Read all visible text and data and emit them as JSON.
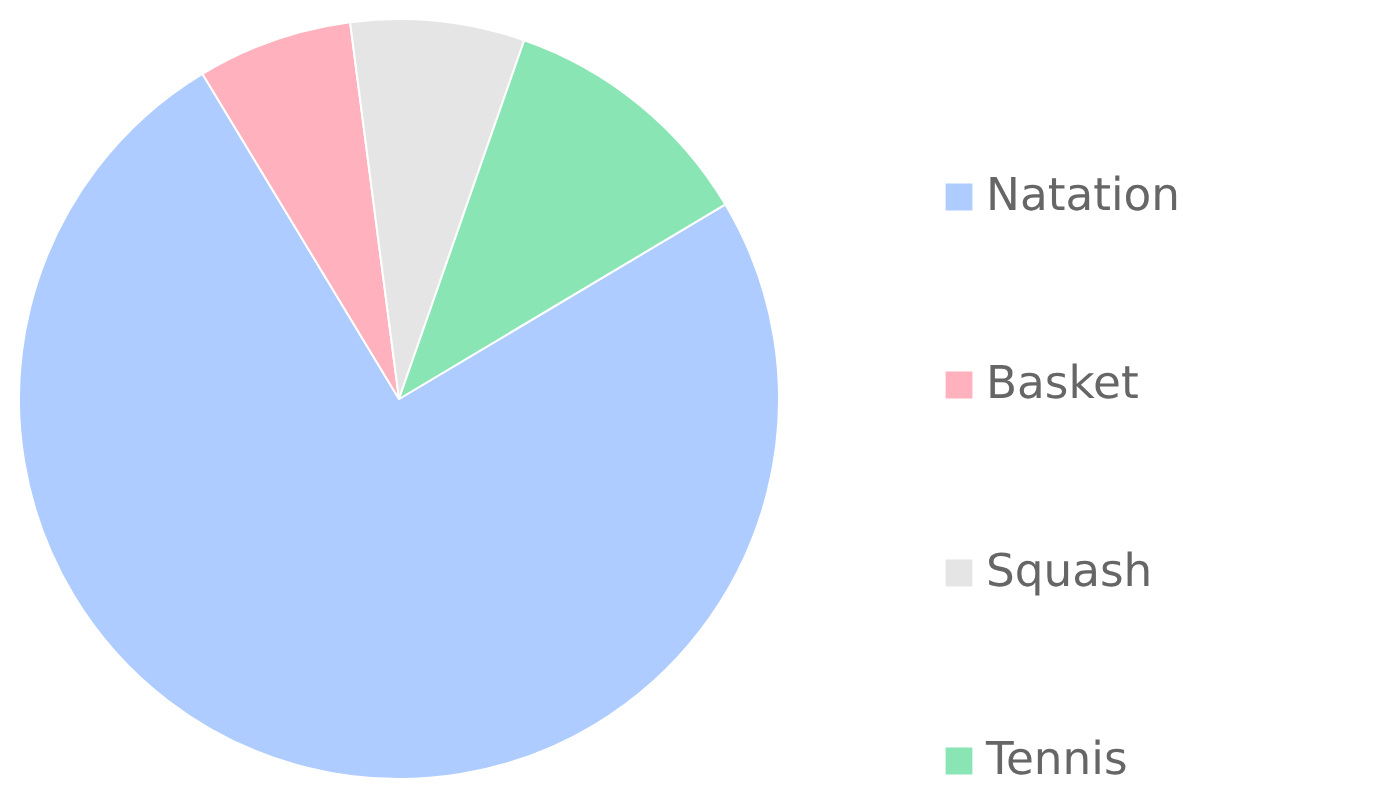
{
  "chart_data": {
    "type": "pie",
    "categories": [
      "Natation",
      "Basket",
      "Squash",
      "Tennis"
    ],
    "values": [
      74.9,
      6.6,
      7.4,
      11.1
    ],
    "colors": [
      "#aeccff",
      "#ffb1bd",
      "#e5e5e5",
      "#8ae5b5"
    ],
    "legend": "right"
  }
}
